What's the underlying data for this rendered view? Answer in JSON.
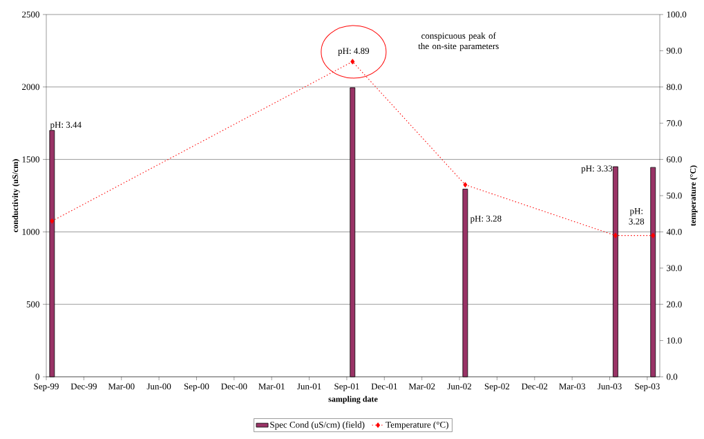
{
  "chart_data": {
    "type": "bar",
    "xlabel": "sampling date",
    "ylabel": "conductivity (uS/cm)",
    "y2label": "temperature (°C)",
    "x": [
      "1999-09-15",
      "2001-09-15",
      "2002-06-15",
      "2003-06-15",
      "2003-09-15"
    ],
    "series": [
      {
        "name": "Spec Cond (uS/cm) (field)",
        "color": "#993366",
        "values": [
          1700,
          1995,
          1295,
          1450,
          1445
        ]
      },
      {
        "name": "Temperature (°C)",
        "type": "line",
        "axis": "y2",
        "color": "#ff0000",
        "marker": "diamond",
        "line_style": "dotted",
        "values": [
          43,
          87,
          53,
          39,
          39
        ]
      }
    ],
    "xlim": [
      "1999-09-01",
      "2003-10-01"
    ],
    "xticks": [
      {
        "value": "1999-09",
        "label": "Sep-99"
      },
      {
        "value": "1999-12",
        "label": "Dec-99"
      },
      {
        "value": "2000-03",
        "label": "Mar-00"
      },
      {
        "value": "2000-06",
        "label": "Jun-00"
      },
      {
        "value": "2000-09",
        "label": "Sep-00"
      },
      {
        "value": "2000-12",
        "label": "Dec-00"
      },
      {
        "value": "2001-03",
        "label": "Mar-01"
      },
      {
        "value": "2001-06",
        "label": "Jun-01"
      },
      {
        "value": "2001-09",
        "label": "Sep-01"
      },
      {
        "value": "2001-12",
        "label": "Dec-01"
      },
      {
        "value": "2002-03",
        "label": "Mar-02"
      },
      {
        "value": "2002-06",
        "label": "Jun-02"
      },
      {
        "value": "2002-09",
        "label": "Sep-02"
      },
      {
        "value": "2002-12",
        "label": "Dec-02"
      },
      {
        "value": "2003-03",
        "label": "Mar-03"
      },
      {
        "value": "2003-06",
        "label": "Jun-03"
      },
      {
        "value": "2003-09",
        "label": "Sep-03"
      }
    ],
    "ylim": [
      0,
      2500
    ],
    "yticks": [
      0,
      500,
      1000,
      1500,
      2000,
      2500
    ],
    "y2lim": [
      0,
      100
    ],
    "y2ticks": [
      {
        "value": 0,
        "label": "0.0"
      },
      {
        "value": 10,
        "label": "10.0"
      },
      {
        "value": 20,
        "label": "20.0"
      },
      {
        "value": 30,
        "label": "30.0"
      },
      {
        "value": 40,
        "label": "40.0"
      },
      {
        "value": 50,
        "label": "50.0"
      },
      {
        "value": 60,
        "label": "60.0"
      },
      {
        "value": 70,
        "label": "70.0"
      },
      {
        "value": 80,
        "label": "80.0"
      },
      {
        "value": 90,
        "label": "90.0"
      },
      {
        "value": 100,
        "label": "100.0"
      }
    ],
    "grid": "y",
    "legend": "bottom",
    "annotations": [
      {
        "text": "pH: 3.44",
        "x": "1999-09-15",
        "y": 1700
      },
      "pH: 4.89",
      "conspicuous peak of the on-site parameters",
      {
        "text": "pH: 3.28",
        "x": "2002-06-15",
        "y": 1295
      },
      {
        "text": "pH: 3.33",
        "x": "2003-06-15",
        "y": 1450
      },
      "pH: 3.28"
    ]
  }
}
